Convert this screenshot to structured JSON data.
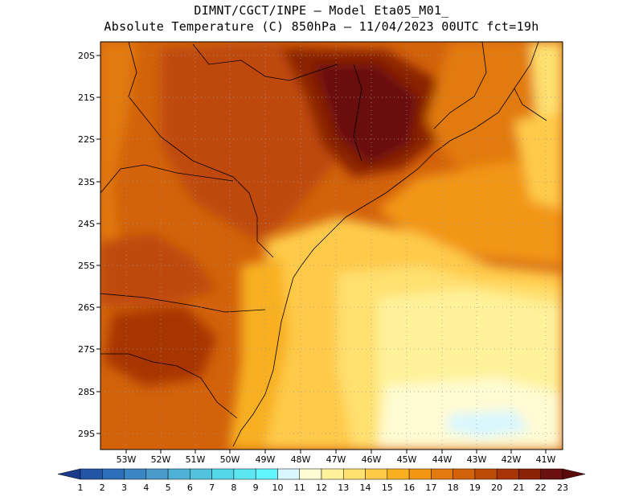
{
  "header": {
    "title_line1": "DIMNT/CGCT/INPE  —  Model Eta05_M01_",
    "title_line2": "Absolute Temperature (C) 850hPa —  11/04/2023 00UTC fct=19h"
  },
  "map": {
    "lat_labels": [
      "20S",
      "21S",
      "22S",
      "23S",
      "24S",
      "25S",
      "26S",
      "27S",
      "28S",
      "29S"
    ],
    "lon_labels": [
      "53W",
      "52W",
      "51W",
      "50W",
      "49W",
      "48W",
      "47W",
      "46W",
      "45W",
      "44W",
      "43W",
      "42W",
      "41W"
    ],
    "grid": true
  },
  "colorbar": {
    "labels": [
      "1",
      "2",
      "3",
      "4",
      "5",
      "6",
      "7",
      "8",
      "9",
      "10",
      "11",
      "12",
      "13",
      "14",
      "15",
      "16",
      "17",
      "18",
      "19",
      "20",
      "21",
      "22",
      "23"
    ],
    "colors": [
      "#1b3a8c",
      "#2455a4",
      "#2c6fb8",
      "#3a86c4",
      "#4a9bcc",
      "#4fb1d6",
      "#52c3de",
      "#55d5e8",
      "#5ce6f2",
      "#62f5ff",
      "#d9f7ff",
      "#fffbd2",
      "#fff29a",
      "#ffe070",
      "#ffca48",
      "#f8b020",
      "#f29614",
      "#e27a0e",
      "#d3620a",
      "#bf4a08",
      "#a73506",
      "#8a2205",
      "#6b1010",
      "#5a0a0a"
    ]
  }
}
